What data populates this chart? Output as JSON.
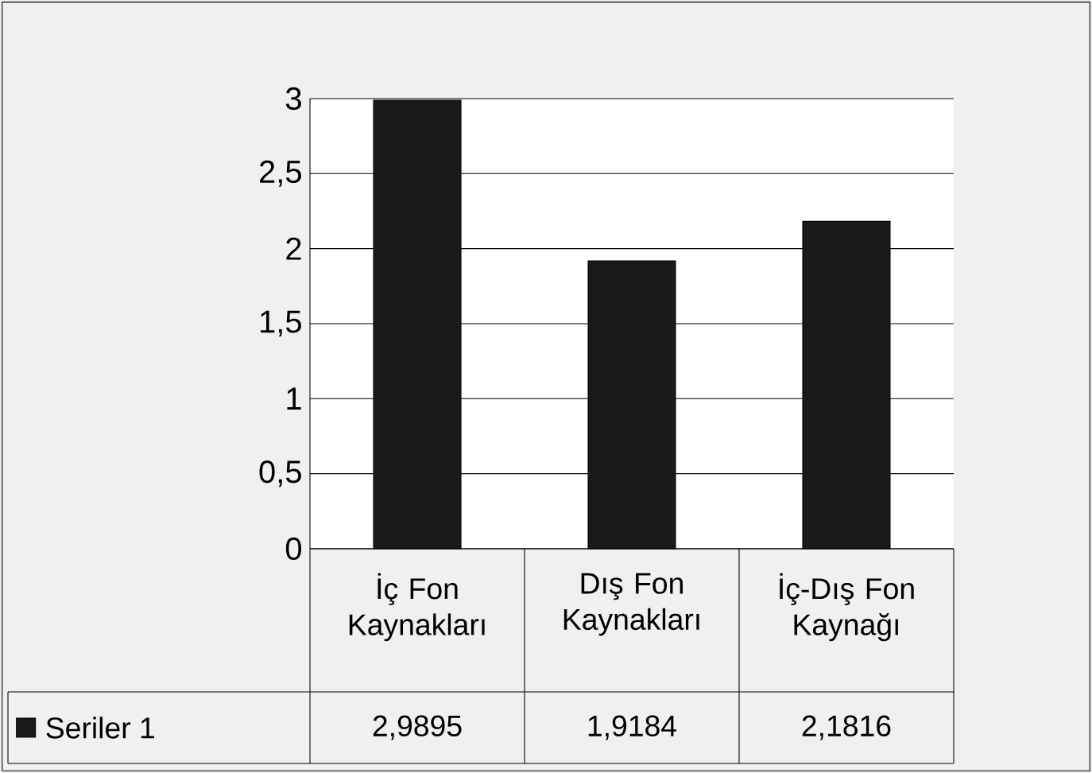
{
  "chart_data": {
    "type": "bar",
    "categories": [
      "İç Fon Kaynakları",
      "Dış Fon Kaynakları",
      "İç-Dış Fon Kaynağı"
    ],
    "series": [
      {
        "name": "Seriler 1",
        "color": "#1a1a1a",
        "values": [
          2.9895,
          1.9184,
          2.1816
        ],
        "value_labels": [
          "2,9895",
          "1,9184",
          "2,1816"
        ]
      }
    ],
    "ylim": [
      0,
      3
    ],
    "yticks": [
      0,
      {
        "value": 0.5,
        "label": "0,5"
      },
      1,
      {
        "value": 1.5,
        "label": "1,5"
      },
      2,
      {
        "value": 2.5,
        "label": "2,5"
      },
      3
    ],
    "grid": "y",
    "legend": "bottom"
  }
}
